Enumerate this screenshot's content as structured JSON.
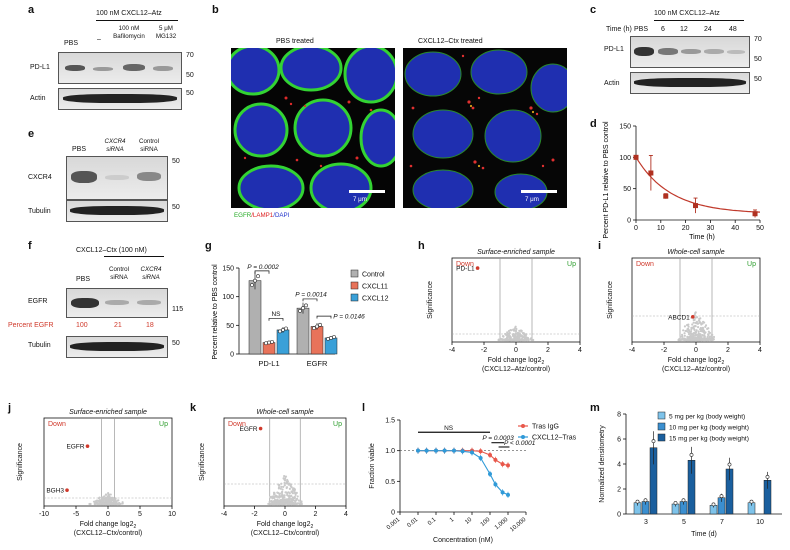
{
  "panels": {
    "a": {
      "letter": "a",
      "treatment": "100 nM CXCL12–Atz",
      "lanes": [
        "PBS",
        "–",
        "100 nM Bafilomycin",
        "5 μM MG132"
      ],
      "rows": [
        {
          "label": "PD-L1",
          "markers": [
            "70",
            "50"
          ]
        },
        {
          "label": "Actin",
          "markers": [
            "50"
          ]
        }
      ]
    },
    "b": {
      "letter": "b",
      "titles": [
        "PBS treated",
        "CXCL12–Ctx treated"
      ],
      "stain": {
        "parts": [
          "EGFR",
          "/LAMP1",
          "/DAPI"
        ],
        "colors": [
          "#22aa22",
          "#dd2222",
          "#2233cc"
        ]
      },
      "scalebar": "7 μm"
    },
    "c": {
      "letter": "c",
      "treatment": "100 nM CXCL12–Atz",
      "time_label": "Time (h)",
      "lanes": [
        "PBS",
        "6",
        "12",
        "24",
        "48"
      ],
      "rows": [
        {
          "label": "PD-L1",
          "markers": [
            "70",
            "50"
          ]
        },
        {
          "label": "Actin",
          "markers": [
            "50"
          ]
        }
      ]
    },
    "d": {
      "letter": "d"
    },
    "e": {
      "letter": "e",
      "lanes": [
        "PBS",
        "CXCR4 siRNA",
        "Control siRNA"
      ],
      "rows": [
        {
          "label": "CXCR4",
          "markers": [
            "50"
          ]
        },
        {
          "label": "Tubulin",
          "markers": [
            "50"
          ]
        }
      ]
    },
    "f": {
      "letter": "f",
      "treatment": "CXCL12–Ctx (100 nM)",
      "lanes": [
        "PBS",
        "Control siRNA",
        "CXCR4 siRNA"
      ],
      "rows": [
        {
          "label": "EGFR",
          "markers": [
            "115"
          ]
        },
        {
          "label": "Tubulin",
          "markers": [
            "50"
          ]
        }
      ],
      "percent_label": "Percent EGFR",
      "percent_values": [
        "100",
        "21",
        "18"
      ]
    },
    "g": {
      "letter": "g"
    },
    "h": {
      "letter": "h"
    },
    "i": {
      "letter": "i"
    },
    "j": {
      "letter": "j"
    },
    "k": {
      "letter": "k"
    },
    "l": {
      "letter": "l"
    },
    "m": {
      "letter": "m"
    }
  },
  "chart_data": [
    {
      "panel": "d",
      "type": "scatter",
      "xlabel": "Time (h)",
      "ylabel": "Percent PD-L1 relative to PBS control",
      "xlim": [
        0,
        50
      ],
      "ylim": [
        0,
        150
      ],
      "xticks": [
        0,
        10,
        20,
        30,
        40,
        50
      ],
      "yticks": [
        0,
        50,
        100,
        150
      ],
      "x": [
        0,
        6,
        12,
        24,
        48
      ],
      "y": [
        100,
        75,
        38,
        23,
        10
      ],
      "err": [
        0,
        28,
        4,
        12,
        6
      ],
      "fit": "exponential decay",
      "colors": {
        "points": "#b03020",
        "fit": "#c0392b"
      }
    },
    {
      "panel": "g",
      "type": "bar",
      "ylabel": "Percent relative to PBS control",
      "ylim": [
        0,
        150
      ],
      "yticks": [
        0,
        50,
        100,
        150
      ],
      "categories": [
        "PD-L1",
        "EGFR"
      ],
      "series": [
        {
          "name": "Control",
          "values": [
            128,
            80
          ],
          "color": "#b0b0b0"
        },
        {
          "name": "CXCL11",
          "values": [
            20,
            48
          ],
          "color": "#e8735a"
        },
        {
          "name": "CXCL12",
          "values": [
            42,
            28
          ],
          "color": "#3aa0d8"
        }
      ],
      "annotations": [
        {
          "text": "P = 0.0002"
        },
        {
          "text": "NS"
        },
        {
          "text": "P = 0.0014"
        },
        {
          "text": "P = 0.0146"
        }
      ]
    },
    {
      "panel": "h",
      "type": "scatter",
      "title": "Surface-enriched sample",
      "xlabel": "Fold change log2",
      "xlabel_sub": "(CXCL12–Atz/control)",
      "ylabel": "Significance",
      "xlim": [
        -4,
        4
      ],
      "xticks": [
        -4,
        -2,
        0,
        2,
        4
      ],
      "corner_labels": {
        "left": "Down",
        "right": "Up"
      },
      "highlight": [
        {
          "label": "PD-L1",
          "x": -2.4,
          "y": 0.88
        }
      ]
    },
    {
      "panel": "i",
      "type": "scatter",
      "title": "Whole-cell sample",
      "xlabel": "Fold change log2",
      "xlabel_sub": "(CXCL12–Atz/control)",
      "ylabel": "Significance",
      "xlim": [
        -4,
        4
      ],
      "xticks": [
        -4,
        -2,
        0,
        2,
        4
      ],
      "corner_labels": {
        "left": "Down",
        "right": "Up"
      },
      "highlight": [
        {
          "label": "ABCD1",
          "x": -0.2,
          "y": 0.3
        }
      ]
    },
    {
      "panel": "j",
      "type": "scatter",
      "title": "Surface-enriched sample",
      "xlabel": "Fold change log2",
      "xlabel_sub": "(CXCL12–Ctx/control)",
      "ylabel": "Significance",
      "xlim": [
        -10,
        10
      ],
      "xticks": [
        -10,
        -5,
        0,
        5,
        10
      ],
      "corner_labels": {
        "left": "Down",
        "right": "Up"
      },
      "highlight": [
        {
          "label": "EGFR",
          "x": -3.2,
          "y": 0.68
        },
        {
          "label": "BGH3",
          "x": -6.4,
          "y": 0.18
        }
      ]
    },
    {
      "panel": "k",
      "type": "scatter",
      "title": "Whole-cell sample",
      "xlabel": "Fold change log2",
      "xlabel_sub": "(CXCL12–Ctx/control)",
      "ylabel": "Significance",
      "xlim": [
        -4,
        4
      ],
      "xticks": [
        -4,
        -2,
        0,
        2,
        4
      ],
      "corner_labels": {
        "left": "Down",
        "right": "Up"
      },
      "highlight": [
        {
          "label": "EGFR",
          "x": -1.6,
          "y": 0.88
        }
      ]
    },
    {
      "panel": "l",
      "type": "line",
      "xlabel": "Concentration (nM)",
      "ylabel": "Fraction viable",
      "xscale": "log",
      "xlim": [
        0.001,
        10000
      ],
      "xticks": [
        "0.001",
        "0.01",
        "0.1",
        "1",
        "10",
        "100",
        "1,000",
        "10,000"
      ],
      "ylim": [
        0,
        1.5
      ],
      "yticks": [
        "0",
        "0.5",
        "1.0",
        "1.5"
      ],
      "x": [
        0.01,
        0.03,
        0.1,
        0.3,
        1,
        3,
        10,
        30,
        100,
        200,
        500,
        1000
      ],
      "series": [
        {
          "name": "Tras IgG",
          "values": [
            1.0,
            1.0,
            1.0,
            1.0,
            1.0,
            1.0,
            1.0,
            0.99,
            0.93,
            0.85,
            0.78,
            0.76
          ],
          "color": "#e8574a"
        },
        {
          "name": "CXCL12–Tras",
          "values": [
            1.0,
            1.0,
            1.0,
            1.0,
            1.0,
            0.99,
            0.97,
            0.88,
            0.62,
            0.45,
            0.32,
            0.28
          ],
          "color": "#2f9ad8"
        }
      ],
      "annotations": [
        {
          "text": "NS"
        },
        {
          "text": "P = 0.0003"
        },
        {
          "text": "P < 0.0001"
        }
      ]
    },
    {
      "panel": "m",
      "type": "bar",
      "xlabel": "Time (d)",
      "ylabel": "Normalized densitometry",
      "categories": [
        "3",
        "5",
        "7",
        "10"
      ],
      "ylim": [
        0,
        8
      ],
      "yticks": [
        0,
        2,
        4,
        6,
        8
      ],
      "series": [
        {
          "name": "5 mg per kg (body weight)",
          "values": [
            0.9,
            0.8,
            0.7,
            0.9
          ],
          "color": "#7ec3ea"
        },
        {
          "name": "10 mg per kg (body weight)",
          "values": [
            1.0,
            1.0,
            1.3,
            0.0
          ],
          "color": "#3b8fd0"
        },
        {
          "name": "15 mg per kg (body weight)",
          "values": [
            5.3,
            4.3,
            3.6,
            2.7
          ],
          "color": "#1a5f9e"
        }
      ]
    }
  ]
}
